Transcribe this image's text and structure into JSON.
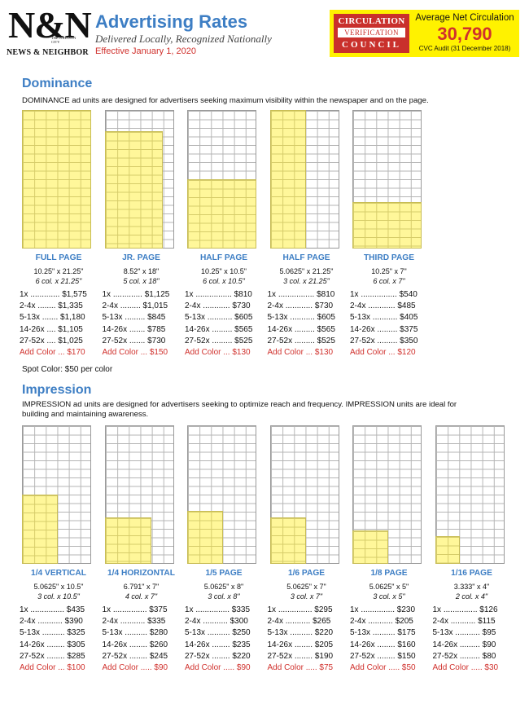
{
  "header": {
    "logo_mark": "N&N",
    "logo_small": "THE JOHNSON CITY",
    "logo_name": "NEWS & NEIGHBOR",
    "title": "Advertising Rates",
    "subtitle": "Delivered Locally, Recognized Nationally",
    "effective": "Effective January 1, 2020",
    "cvc_line1": "CIRCULATION",
    "cvc_line2": "VERIFICATION",
    "cvc_line3": "COUNCIL",
    "circ_label": "Average Net Circulation",
    "circ_number": "30,790",
    "circ_audit": "CVC Audit (31 December 2018)"
  },
  "colors": {
    "accent_blue": "#3d7ec4",
    "red": "#d0312d",
    "highlight_yellow": "#fff200",
    "ad_fill": "#fff79a"
  },
  "dominance": {
    "heading": "Dominance",
    "description": "DOMINANCE ad units are designed for advertisers seeking maximum visibility within the newspaper and on the page.",
    "spot_color": "Spot Color: $50 per color",
    "units": [
      {
        "name": "FULL PAGE",
        "dims": "10.25\" x 21.25\"",
        "cols": "6 col. x 21.25\"",
        "fill_w": 1.0,
        "fill_h": 1.0,
        "rates": [
          "1x ............. $1,575",
          "2-4x ........ $1,335",
          "5-13x ....... $1,180",
          "14-26x .... $1,105",
          "27-52x .... $1,025"
        ],
        "color": "Add Color ... $170"
      },
      {
        "name": "JR. PAGE",
        "dims": "8.52\" x 18\"",
        "cols": "5 col. x 18\"",
        "fill_w": 0.833,
        "fill_h": 0.847,
        "rates": [
          "1x ............. $1,125",
          "2-4x ......... $1,015",
          "5-13x ......... $845",
          "14-26x ....... $785",
          "27-52x ....... $730"
        ],
        "color": "Add Color ... $150"
      },
      {
        "name": "HALF PAGE",
        "dims": "10.25\" x 10.5\"",
        "cols": "6 col. x 10.5\"",
        "fill_w": 1.0,
        "fill_h": 0.494,
        "rates": [
          "1x ................ $810",
          "2-4x ............ $730",
          "5-13x ........... $605",
          "14-26x ......... $565",
          "27-52x ......... $525"
        ],
        "color": "Add Color ... $130"
      },
      {
        "name": "HALF PAGE",
        "dims": "5.0625\" x 21.25\"",
        "cols": "3 col. x 21.25\"",
        "fill_w": 0.5,
        "fill_h": 1.0,
        "rates": [
          "1x ................ $810",
          "2-4x ............ $730",
          "5-13x ........... $605",
          "14-26x ......... $565",
          "27-52x ......... $525"
        ],
        "color": "Add Color ... $130"
      },
      {
        "name": "THIRD PAGE",
        "dims": "10.25\" x 7\"",
        "cols": "6 col. x 7\"",
        "fill_w": 1.0,
        "fill_h": 0.329,
        "rates": [
          "1x ................ $540",
          "2-4x ............ $485",
          "5-13x ........... $405",
          "14-26x ......... $375",
          "27-52x ......... $350"
        ],
        "color": "Add Color ... $120"
      }
    ]
  },
  "impression": {
    "heading": "Impression",
    "description": "IMPRESSION ad units are designed for advertisers seeking to optimize reach and frequency. IMPRESSION units are ideal for building and maintaining awareness.",
    "units": [
      {
        "name": "1/4 VERTICAL",
        "dims": "5.0625\" x 10.5\"",
        "cols": "3 col. x 10.5\"",
        "fill_w": 0.5,
        "fill_h": 0.494,
        "rates": [
          "1x ............... $435",
          "2-4x ........... $390",
          "5-13x .......... $325",
          "14-26x ........ $305",
          "27-52x ........ $285"
        ],
        "color": "Add Color ... $100"
      },
      {
        "name": "1/4 HORIZONTAL",
        "dims": "6.791\" x 7\"",
        "cols": "4 col. x 7\"",
        "fill_w": 0.667,
        "fill_h": 0.329,
        "rates": [
          "1x ............... $375",
          "2-4x ........... $335",
          "5-13x .......... $280",
          "14-26x ........ $260",
          "27-52x ........ $245"
        ],
        "color": "Add Color ..... $90"
      },
      {
        "name": "1/5 PAGE",
        "dims": "5.0625\" x 8\"",
        "cols": "3 col. x 8\"",
        "fill_w": 0.5,
        "fill_h": 0.376,
        "rates": [
          "1x ............... $335",
          "2-4x ........... $300",
          "5-13x .......... $250",
          "14-26x ........ $235",
          "27-52x ........ $220"
        ],
        "color": "Add Color ..... $90"
      },
      {
        "name": "1/6 PAGE",
        "dims": "5.0625\" x 7\"",
        "cols": "3 col. x 7\"",
        "fill_w": 0.5,
        "fill_h": 0.329,
        "rates": [
          "1x ............... $295",
          "2-4x ........... $265",
          "5-13x .......... $220",
          "14-26x ........ $205",
          "27-52x ........ $190"
        ],
        "color": "Add Color ..... $75"
      },
      {
        "name": "1/8 PAGE",
        "dims": "5.0625\" x 5\"",
        "cols": "3 col. x 5\"",
        "fill_w": 0.5,
        "fill_h": 0.235,
        "rates": [
          "1x ............... $230",
          "2-4x ........... $205",
          "5-13x .......... $175",
          "14-26x ........ $160",
          "27-52x ........ $150"
        ],
        "color": "Add Color ..... $50"
      },
      {
        "name": "1/16 PAGE",
        "dims": "3.333\" x 4\"",
        "cols": "2 col. x 4\"",
        "fill_w": 0.333,
        "fill_h": 0.188,
        "rates": [
          "1x ............... $126",
          "2-4x ........... $115",
          "5-13x ........... $95",
          "14-26x ......... $90",
          "27-52x ......... $80"
        ],
        "color": "Add Color ..... $30"
      }
    ]
  }
}
